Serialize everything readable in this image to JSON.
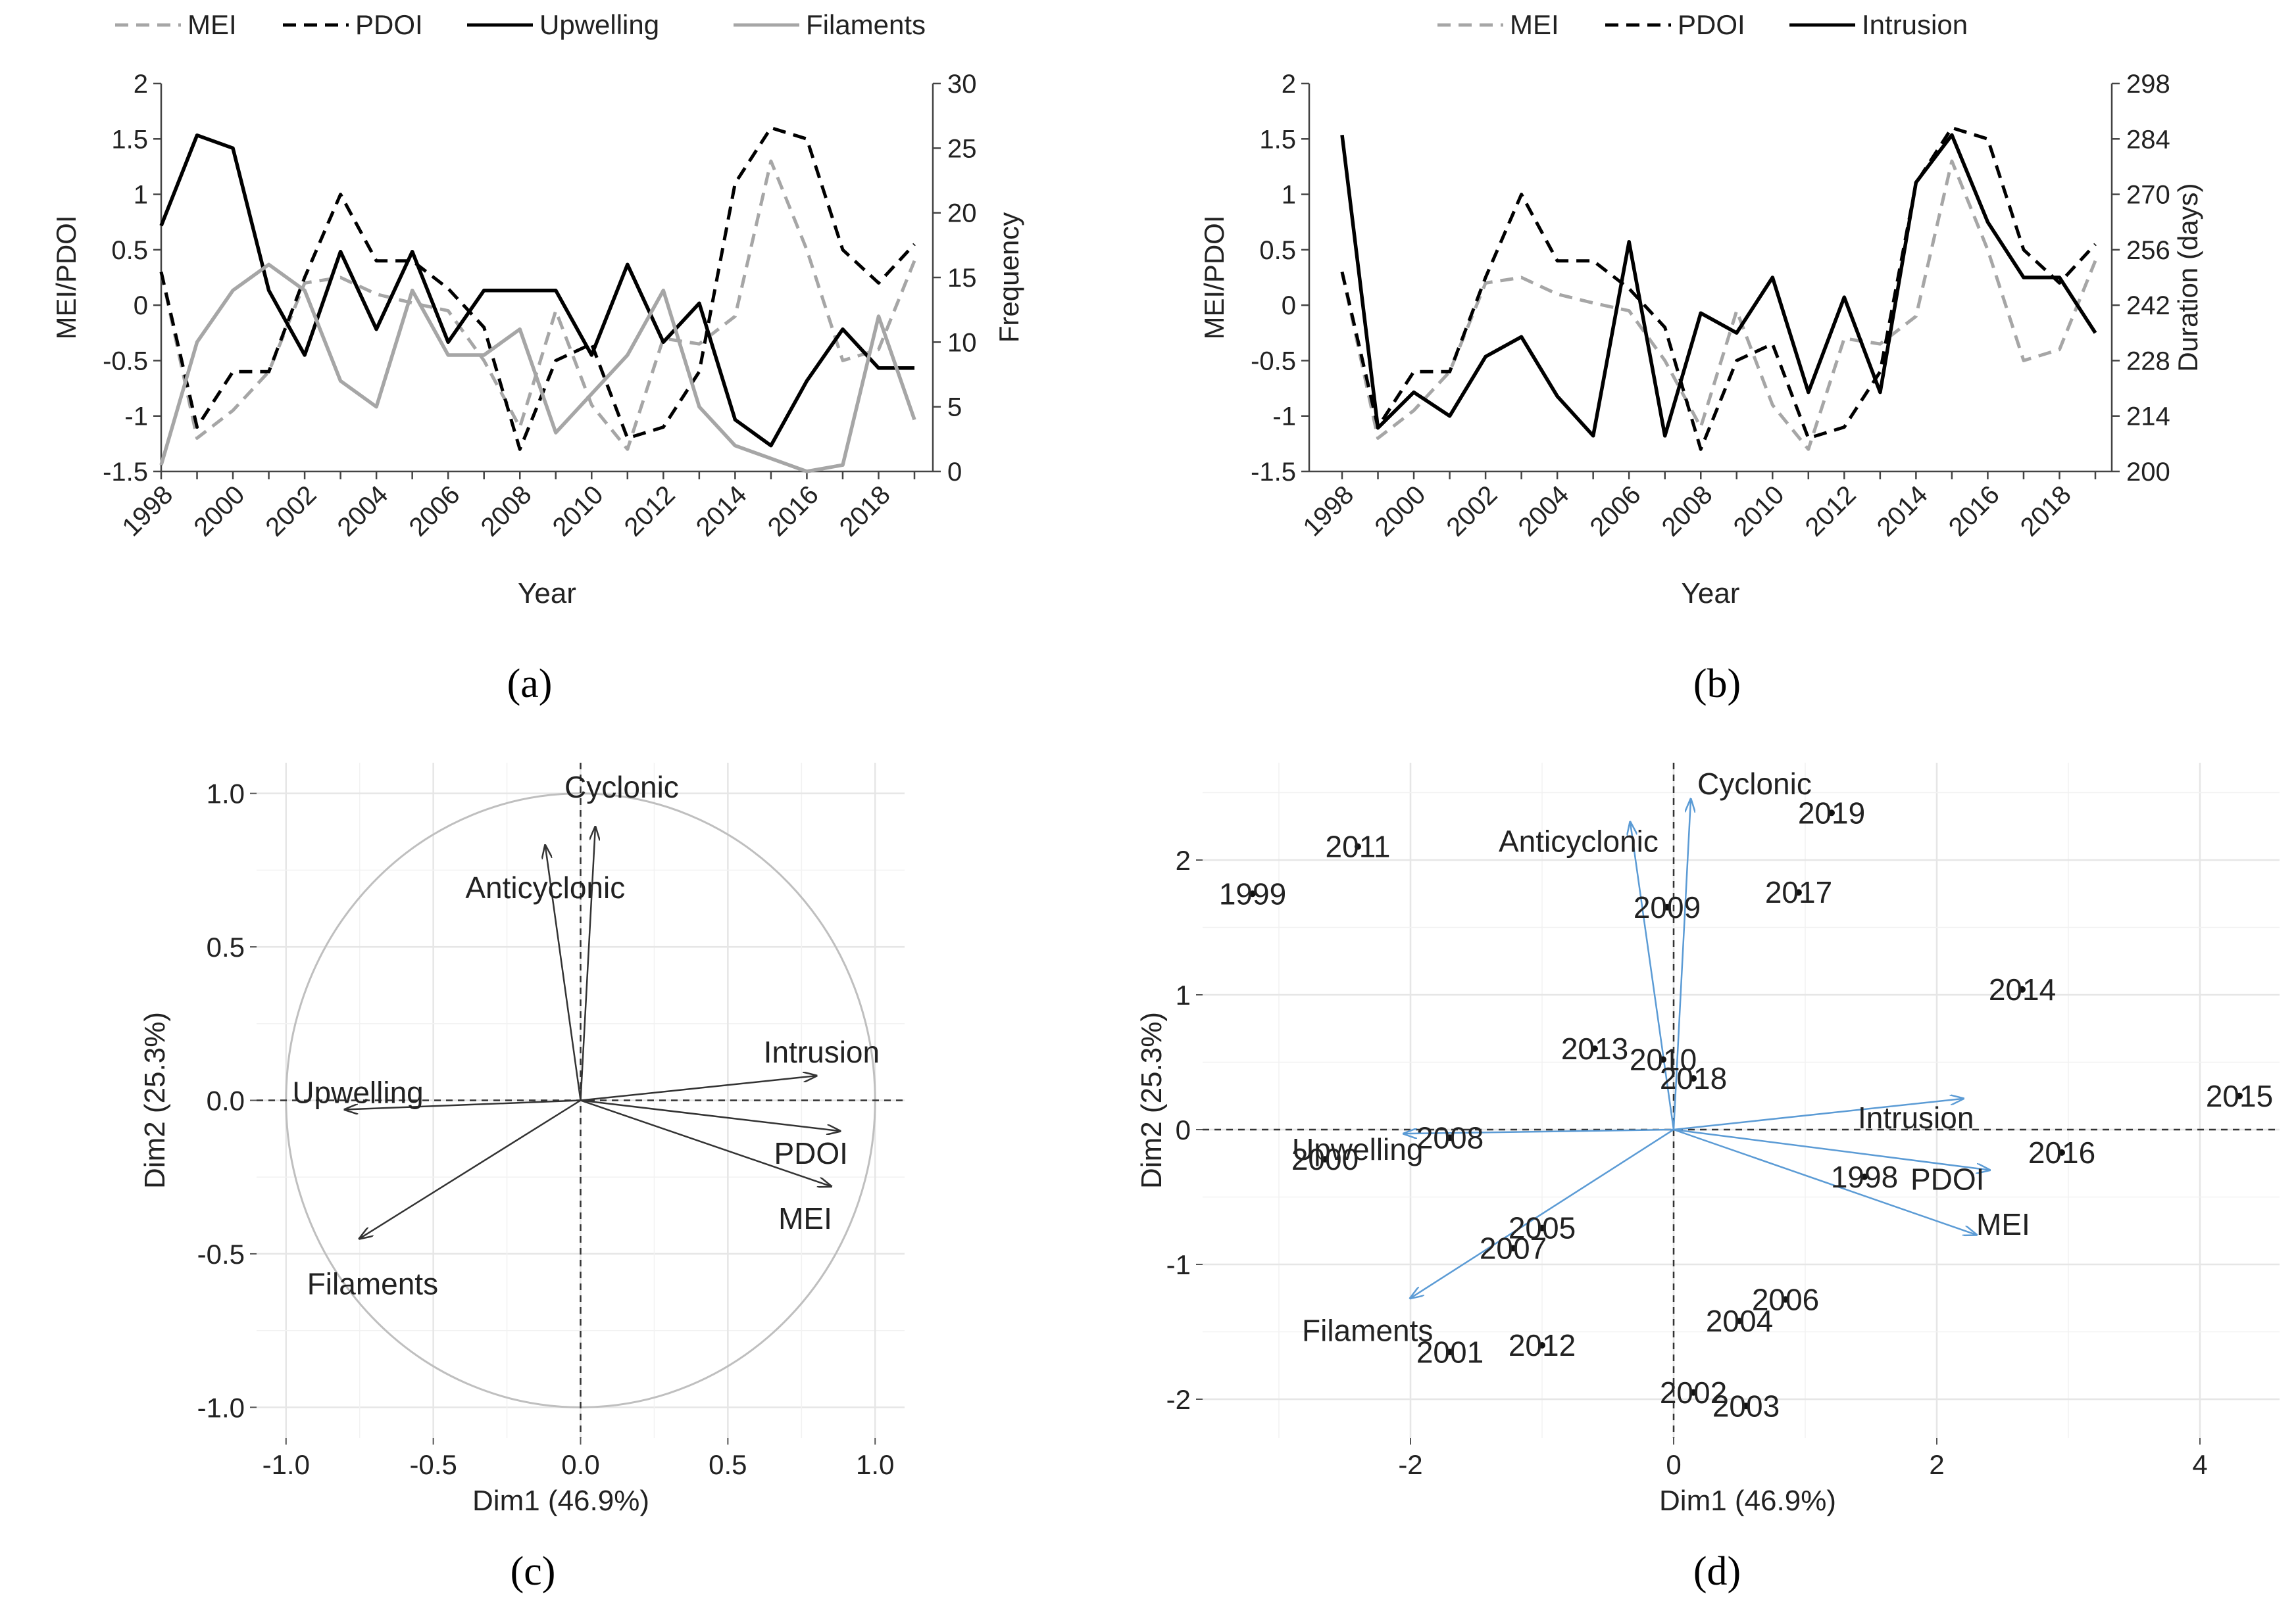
{
  "panel_labels": [
    "(a)",
    "(b)",
    "(c)",
    "(d)"
  ],
  "chart_data": [
    {
      "id": "a",
      "type": "line",
      "xlabel": "Year",
      "ylabel": "MEI/PDOI",
      "y2label": "Frequency",
      "ylim": [
        -1.5,
        2
      ],
      "y2lim": [
        0,
        30
      ],
      "x": [
        1998,
        1999,
        2000,
        2001,
        2002,
        2003,
        2004,
        2005,
        2006,
        2007,
        2008,
        2009,
        2010,
        2011,
        2012,
        2013,
        2014,
        2015,
        2016,
        2017,
        2018,
        2019
      ],
      "x_tick_labels": [
        "1998",
        "2000",
        "2002",
        "2004",
        "2006",
        "2008",
        "2010",
        "2012",
        "2014",
        "2016",
        "2018"
      ],
      "y_tick_labels": [
        "-1.5",
        "-1",
        "-0.5",
        "0",
        "0.5",
        "1",
        "1.5",
        "2"
      ],
      "y2_tick_labels": [
        "0",
        "5",
        "10",
        "15",
        "20",
        "25",
        "30"
      ],
      "legend_position": "top",
      "series": [
        {
          "name": "MEI",
          "axis": "left",
          "color": "#a6a6a6",
          "dash": "dashed",
          "values": [
            0.3,
            -1.2,
            -0.95,
            -0.6,
            0.2,
            0.25,
            0.1,
            0.02,
            -0.05,
            -0.5,
            -1.1,
            -0.05,
            -0.9,
            -1.3,
            -0.3,
            -0.35,
            -0.1,
            1.3,
            0.5,
            -0.5,
            -0.4,
            0.4
          ]
        },
        {
          "name": "PDOI",
          "axis": "left",
          "color": "#000000",
          "dash": "dashed",
          "values": [
            0.3,
            -1.1,
            -0.6,
            -0.6,
            0.25,
            1.0,
            0.4,
            0.4,
            0.15,
            -0.2,
            -1.3,
            -0.5,
            -0.35,
            -1.2,
            -1.1,
            -0.6,
            1.1,
            1.6,
            1.5,
            0.5,
            0.2,
            0.55
          ]
        },
        {
          "name": "Upwelling",
          "axis": "right",
          "color": "#000000",
          "dash": "solid",
          "values": [
            19,
            26,
            25,
            14,
            9,
            17,
            11,
            17,
            10,
            14,
            14,
            14,
            9,
            16,
            10,
            13,
            4,
            2,
            7,
            11,
            8,
            8
          ]
        },
        {
          "name": "Filaments",
          "axis": "right",
          "color": "#a6a6a6",
          "dash": "solid",
          "values": [
            0.5,
            10,
            14,
            16,
            14,
            7,
            5,
            14,
            9,
            9,
            11,
            3,
            6,
            9,
            14,
            5,
            2,
            1,
            0,
            0.5,
            12,
            4
          ]
        }
      ]
    },
    {
      "id": "b",
      "type": "line",
      "xlabel": "Year",
      "ylabel": "MEI/PDOI",
      "y2label": "Duration (days)",
      "ylim": [
        -1.5,
        2
      ],
      "y2lim": [
        200,
        298
      ],
      "x": [
        1998,
        1999,
        2000,
        2001,
        2002,
        2003,
        2004,
        2005,
        2006,
        2007,
        2008,
        2009,
        2010,
        2011,
        2012,
        2013,
        2014,
        2015,
        2016,
        2017,
        2018,
        2019
      ],
      "x_tick_labels": [
        "1998",
        "2000",
        "2002",
        "2004",
        "2006",
        "2008",
        "2010",
        "2012",
        "2014",
        "2016",
        "2018"
      ],
      "y_tick_labels": [
        "-1.5",
        "-1",
        "-0.5",
        "0",
        "0.5",
        "1",
        "1.5",
        "2"
      ],
      "y2_tick_labels": [
        "200",
        "214",
        "228",
        "242",
        "256",
        "270",
        "284",
        "298"
      ],
      "legend_position": "top",
      "series": [
        {
          "name": "MEI",
          "axis": "left",
          "color": "#a6a6a6",
          "dash": "dashed",
          "values": [
            0.3,
            -1.2,
            -0.95,
            -0.6,
            0.2,
            0.25,
            0.1,
            0.02,
            -0.05,
            -0.5,
            -1.1,
            -0.05,
            -0.9,
            -1.3,
            -0.3,
            -0.35,
            -0.1,
            1.3,
            0.5,
            -0.5,
            -0.4,
            0.4
          ]
        },
        {
          "name": "PDOI",
          "axis": "left",
          "color": "#000000",
          "dash": "dashed",
          "values": [
            0.3,
            -1.1,
            -0.6,
            -0.6,
            0.25,
            1.0,
            0.4,
            0.4,
            0.15,
            -0.2,
            -1.3,
            -0.5,
            -0.35,
            -1.2,
            -1.1,
            -0.6,
            1.1,
            1.6,
            1.5,
            0.5,
            0.2,
            0.55
          ]
        },
        {
          "name": "Intrusion",
          "axis": "right",
          "color": "#000000",
          "dash": "solid",
          "values": [
            285,
            211,
            220,
            214,
            229,
            234,
            219,
            209,
            258,
            209,
            240,
            235,
            249,
            220,
            244,
            220,
            273,
            285,
            263,
            249,
            249,
            235
          ]
        }
      ]
    },
    {
      "id": "c",
      "type": "scatter",
      "subtype": "pca-variable-correlation-circle",
      "xlabel": "Dim1 (46.9%)",
      "ylabel": "Dim2 (25.3%)",
      "xlim": [
        -1.1,
        1.1
      ],
      "ylim": [
        -1.1,
        1.1
      ],
      "x_tick_labels": [
        "-1.0",
        "-0.5",
        "0.0",
        "0.5",
        "1.0"
      ],
      "y_tick_labels": [
        "-1.0",
        "-0.5",
        "0.0",
        "0.5",
        "1.0"
      ],
      "arrow_color": "#333333",
      "arrows": [
        {
          "name": "Cyclonic",
          "x": 0.05,
          "y": 0.89
        },
        {
          "name": "Anticyclonic",
          "x": -0.12,
          "y": 0.83
        },
        {
          "name": "Intrusion",
          "x": 0.8,
          "y": 0.08
        },
        {
          "name": "PDOI",
          "x": 0.88,
          "y": -0.1
        },
        {
          "name": "MEI",
          "x": 0.85,
          "y": -0.28
        },
        {
          "name": "Upwelling",
          "x": -0.8,
          "y": -0.03
        },
        {
          "name": "Filaments",
          "x": -0.75,
          "y": -0.45
        }
      ]
    },
    {
      "id": "d",
      "type": "scatter",
      "subtype": "pca-biplot",
      "xlabel": "Dim1 (46.9%)",
      "ylabel": "Dim2 (25.3%)",
      "xlim": [
        -3.5,
        4.6
      ],
      "ylim": [
        -2.4,
        2.6
      ],
      "x_tick_labels": [
        "-2",
        "0",
        "2",
        "4"
      ],
      "y_tick_labels": [
        "-2",
        "-1",
        "0",
        "1",
        "2"
      ],
      "arrow_color": "#5b9bd5",
      "points": [
        {
          "label": "1998",
          "x": 1.45,
          "y": -0.35
        },
        {
          "label": "1999",
          "x": -3.2,
          "y": 1.75
        },
        {
          "label": "2000",
          "x": -2.65,
          "y": -0.22
        },
        {
          "label": "2001",
          "x": -1.7,
          "y": -1.65
        },
        {
          "label": "2002",
          "x": 0.15,
          "y": -1.95
        },
        {
          "label": "2003",
          "x": 0.55,
          "y": -2.05
        },
        {
          "label": "2004",
          "x": 0.5,
          "y": -1.42
        },
        {
          "label": "2005",
          "x": -1.0,
          "y": -0.73
        },
        {
          "label": "2006",
          "x": 0.85,
          "y": -1.26
        },
        {
          "label": "2007",
          "x": -1.22,
          "y": -0.88
        },
        {
          "label": "2008",
          "x": -1.7,
          "y": -0.06
        },
        {
          "label": "2009",
          "x": -0.05,
          "y": 1.65
        },
        {
          "label": "2010",
          "x": -0.08,
          "y": 0.52
        },
        {
          "label": "2011",
          "x": -2.4,
          "y": 2.1
        },
        {
          "label": "2012",
          "x": -1.0,
          "y": -1.6
        },
        {
          "label": "2013",
          "x": -0.6,
          "y": 0.6
        },
        {
          "label": "2014",
          "x": 2.65,
          "y": 1.04
        },
        {
          "label": "2015",
          "x": 4.3,
          "y": 0.25
        },
        {
          "label": "2016",
          "x": 2.95,
          "y": -0.17
        },
        {
          "label": "2017",
          "x": 0.95,
          "y": 1.76
        },
        {
          "label": "2018",
          "x": 0.15,
          "y": 0.38
        },
        {
          "label": "2019",
          "x": 1.2,
          "y": 2.35
        }
      ],
      "arrows": [
        {
          "name": "Cyclonic",
          "x": 0.13,
          "y": 2.45
        },
        {
          "name": "Anticyclonic",
          "x": -0.33,
          "y": 2.28
        },
        {
          "name": "Intrusion",
          "x": 2.2,
          "y": 0.23
        },
        {
          "name": "PDOI",
          "x": 2.4,
          "y": -0.3
        },
        {
          "name": "MEI",
          "x": 2.3,
          "y": -0.78
        },
        {
          "name": "Upwelling",
          "x": -2.05,
          "y": -0.03
        },
        {
          "name": "Filaments",
          "x": -2.0,
          "y": -1.25
        }
      ]
    }
  ]
}
